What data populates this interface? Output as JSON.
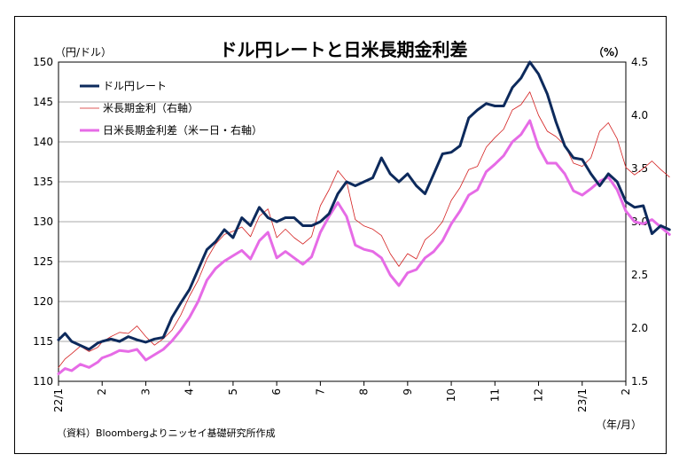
{
  "chart_data": {
    "type": "line",
    "title": "ドル円レートと日米長期金利差",
    "left_unit": "（円/ドル）",
    "right_unit": "（%）",
    "x_unit": "（年/月）",
    "source": "（資料）Bloombergよりニッセイ基礎研究所作成",
    "left_axis": {
      "ylim": [
        110,
        150
      ],
      "ticks": [
        110,
        115,
        120,
        125,
        130,
        135,
        140,
        145,
        150
      ]
    },
    "right_axis": {
      "ylim": [
        1.5,
        4.5
      ],
      "ticks": [
        "1.5",
        "2.0",
        "2.5",
        "3.0",
        "3.5",
        "4.0",
        "4.5"
      ]
    },
    "x_ticks": [
      "22/1",
      "2",
      "3",
      "4",
      "5",
      "6",
      "7",
      "8",
      "9",
      "10",
      "11",
      "12",
      "23/1",
      "2"
    ],
    "grid": "horizontal",
    "legend_position": "top-left",
    "series": [
      {
        "name": "ドル円レート",
        "axis": "left",
        "color": "#0d2a5c",
        "width": 3,
        "x": [
          0.0,
          0.15,
          0.3,
          0.5,
          0.7,
          0.9,
          1.0,
          1.2,
          1.4,
          1.6,
          1.8,
          2.0,
          2.2,
          2.4,
          2.6,
          2.8,
          3.0,
          3.2,
          3.4,
          3.6,
          3.8,
          4.0,
          4.2,
          4.4,
          4.6,
          4.8,
          5.0,
          5.2,
          5.4,
          5.6,
          5.8,
          6.0,
          6.2,
          6.4,
          6.6,
          6.8,
          7.0,
          7.2,
          7.4,
          7.6,
          7.8,
          8.0,
          8.2,
          8.4,
          8.6,
          8.8,
          9.0,
          9.2,
          9.4,
          9.6,
          9.8,
          10.0,
          10.2,
          10.4,
          10.6,
          10.8,
          11.0,
          11.2,
          11.4,
          11.6,
          11.8,
          12.0,
          12.2,
          12.4,
          12.6,
          12.8,
          13.0,
          13.2,
          13.4,
          13.6,
          13.8,
          14.0
        ],
        "values": [
          115.2,
          116.0,
          115.0,
          114.5,
          114.0,
          114.8,
          115.0,
          115.3,
          115.0,
          115.6,
          115.2,
          114.9,
          115.3,
          115.5,
          118.0,
          119.8,
          121.5,
          124.0,
          126.5,
          127.5,
          129.0,
          128.0,
          130.5,
          129.5,
          131.8,
          130.5,
          130.0,
          130.5,
          130.5,
          129.5,
          129.5,
          130.0,
          131.0,
          133.5,
          135.0,
          134.5,
          135.0,
          135.5,
          138.0,
          136.0,
          135.0,
          136.0,
          134.5,
          133.5,
          136.0,
          138.5,
          138.7,
          139.5,
          143.0,
          144.0,
          144.8,
          144.5,
          144.5,
          146.8,
          148.0,
          150.0,
          148.5,
          146.0,
          142.5,
          139.5,
          138.0,
          137.8,
          136.0,
          134.5,
          136.0,
          135.0,
          132.5,
          131.8,
          132.0,
          128.5,
          129.5,
          129.0
        ]
      },
      {
        "name": "米長期金利（右軸）",
        "axis": "right",
        "color": "#d42020",
        "width": 0.8,
        "x": [
          0.0,
          0.15,
          0.3,
          0.5,
          0.7,
          0.9,
          1.0,
          1.2,
          1.4,
          1.6,
          1.8,
          2.0,
          2.2,
          2.4,
          2.6,
          2.8,
          3.0,
          3.2,
          3.4,
          3.6,
          3.8,
          4.0,
          4.2,
          4.4,
          4.6,
          4.8,
          5.0,
          5.2,
          5.4,
          5.6,
          5.8,
          6.0,
          6.2,
          6.4,
          6.6,
          6.8,
          7.0,
          7.2,
          7.4,
          7.6,
          7.8,
          8.0,
          8.2,
          8.4,
          8.6,
          8.8,
          9.0,
          9.2,
          9.4,
          9.6,
          9.8,
          10.0,
          10.2,
          10.4,
          10.6,
          10.8,
          11.0,
          11.2,
          11.4,
          11.6,
          11.8,
          12.0,
          12.2,
          12.4,
          12.6,
          12.8,
          13.0,
          13.2,
          13.4,
          13.6,
          13.8,
          14.0
        ],
        "values": [
          1.63,
          1.71,
          1.76,
          1.83,
          1.78,
          1.82,
          1.87,
          1.92,
          1.96,
          1.95,
          2.02,
          1.92,
          1.84,
          1.9,
          1.98,
          2.12,
          2.3,
          2.45,
          2.65,
          2.79,
          2.88,
          2.91,
          2.95,
          2.86,
          3.05,
          3.12,
          2.85,
          2.93,
          2.85,
          2.79,
          2.86,
          3.15,
          3.3,
          3.48,
          3.38,
          3.02,
          2.96,
          2.93,
          2.87,
          2.7,
          2.58,
          2.7,
          2.65,
          2.83,
          2.9,
          3.0,
          3.2,
          3.32,
          3.49,
          3.52,
          3.7,
          3.79,
          3.87,
          4.05,
          4.1,
          4.22,
          4.0,
          3.85,
          3.8,
          3.72,
          3.55,
          3.52,
          3.6,
          3.85,
          3.93,
          3.78,
          3.51,
          3.44,
          3.5,
          3.57,
          3.49,
          3.42
        ]
      },
      {
        "name": "日米長期金利差（米ー日・右軸）",
        "axis": "right",
        "color": "#e66be6",
        "width": 3,
        "x": [
          0.0,
          0.15,
          0.3,
          0.5,
          0.7,
          0.9,
          1.0,
          1.2,
          1.4,
          1.6,
          1.8,
          2.0,
          2.2,
          2.4,
          2.6,
          2.8,
          3.0,
          3.2,
          3.4,
          3.6,
          3.8,
          4.0,
          4.2,
          4.4,
          4.6,
          4.8,
          5.0,
          5.2,
          5.4,
          5.6,
          5.8,
          6.0,
          6.2,
          6.4,
          6.6,
          6.8,
          7.0,
          7.2,
          7.4,
          7.6,
          7.8,
          8.0,
          8.2,
          8.4,
          8.6,
          8.8,
          9.0,
          9.2,
          9.4,
          9.6,
          9.8,
          10.0,
          10.2,
          10.4,
          10.6,
          10.8,
          11.0,
          11.2,
          11.4,
          11.6,
          11.8,
          12.0,
          12.2,
          12.4,
          12.6,
          12.8,
          13.0,
          13.2,
          13.4,
          13.6,
          13.8,
          14.0
        ],
        "values": [
          1.57,
          1.62,
          1.6,
          1.66,
          1.63,
          1.68,
          1.72,
          1.75,
          1.79,
          1.78,
          1.8,
          1.7,
          1.75,
          1.8,
          1.88,
          1.98,
          2.1,
          2.25,
          2.45,
          2.56,
          2.63,
          2.68,
          2.73,
          2.65,
          2.82,
          2.9,
          2.66,
          2.72,
          2.66,
          2.6,
          2.67,
          2.9,
          3.05,
          3.18,
          3.05,
          2.78,
          2.74,
          2.72,
          2.66,
          2.5,
          2.4,
          2.52,
          2.55,
          2.66,
          2.72,
          2.82,
          2.98,
          3.1,
          3.25,
          3.3,
          3.47,
          3.54,
          3.62,
          3.75,
          3.82,
          3.95,
          3.7,
          3.55,
          3.55,
          3.45,
          3.29,
          3.25,
          3.31,
          3.38,
          3.42,
          3.3,
          3.1,
          3.0,
          2.98,
          3.02,
          2.95,
          2.88
        ]
      }
    ]
  }
}
